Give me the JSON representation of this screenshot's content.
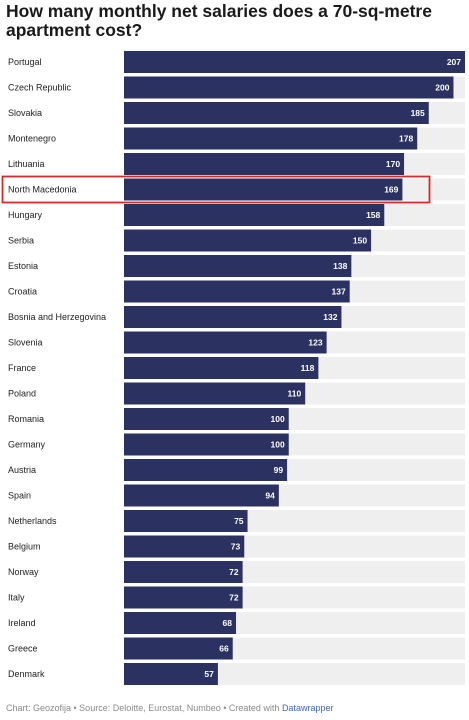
{
  "chart_data": {
    "type": "bar",
    "orientation": "horizontal",
    "title": "How many monthly net salaries does a 70-sq-metre apartment cost?",
    "categories": [
      "Portugal",
      "Czech Republic",
      "Slovakia",
      "Montenegro",
      "Lithuania",
      "North Macedonia",
      "Hungary",
      "Serbia",
      "Estonia",
      "Croatia",
      "Bosnia and Herzegovina",
      "Slovenia",
      "France",
      "Poland",
      "Romania",
      "Germany",
      "Austria",
      "Spain",
      "Netherlands",
      "Belgium",
      "Norway",
      "Italy",
      "Ireland",
      "Greece",
      "Denmark"
    ],
    "values": [
      207,
      200,
      185,
      178,
      170,
      169,
      158,
      150,
      138,
      137,
      132,
      123,
      118,
      110,
      100,
      100,
      99,
      94,
      75,
      73,
      72,
      72,
      68,
      66,
      57
    ],
    "xlim": [
      0,
      207
    ],
    "highlighted_category": "North Macedonia",
    "bar_color": "#2b3160",
    "track_color": "#efefef",
    "highlight_color": "#d62a2a",
    "footer": {
      "text": "Chart: Geozofija • Source: Deloitte, Eurostat, Numbeo • Created with ",
      "link": "Datawrapper"
    }
  }
}
